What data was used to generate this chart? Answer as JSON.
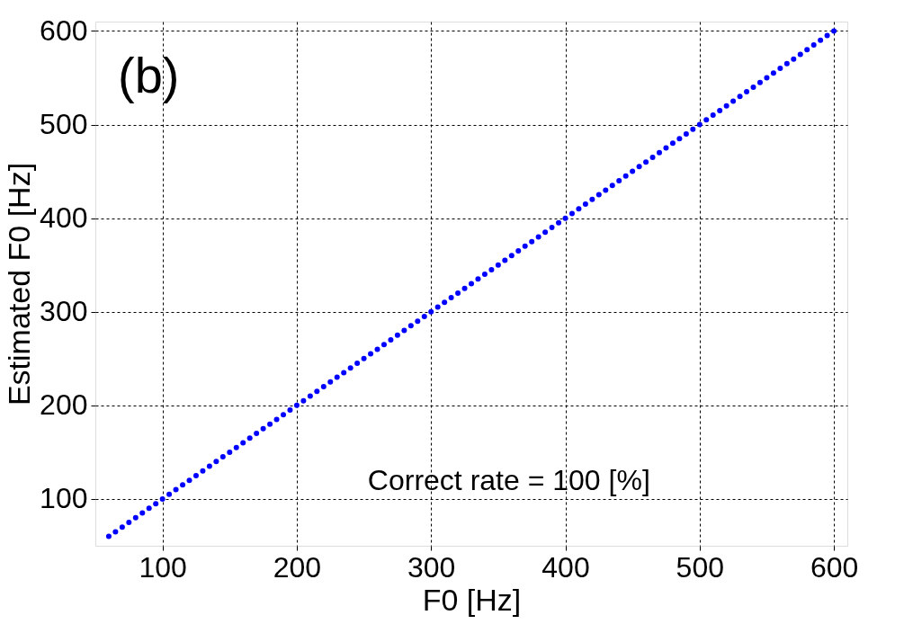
{
  "chart_data": {
    "type": "scatter",
    "xlabel": "F0 [Hz]",
    "ylabel": "Estimated F0 [Hz]",
    "annotations": [
      "(b)",
      "Correct rate = 100 [%]"
    ],
    "xlim": [
      50,
      610
    ],
    "ylim": [
      50,
      610
    ],
    "xticks": [
      100,
      200,
      300,
      400,
      500,
      600
    ],
    "yticks": [
      100,
      200,
      300,
      400,
      500,
      600
    ],
    "grid": true,
    "legend": false,
    "marker": "circle",
    "x": [
      60,
      65,
      70,
      75,
      80,
      85,
      90,
      95,
      100,
      105,
      110,
      115,
      120,
      125,
      130,
      135,
      140,
      145,
      150,
      155,
      160,
      165,
      170,
      175,
      180,
      185,
      190,
      195,
      200,
      205,
      210,
      215,
      220,
      225,
      230,
      235,
      240,
      245,
      250,
      255,
      260,
      265,
      270,
      275,
      280,
      285,
      290,
      295,
      300,
      305,
      310,
      315,
      320,
      325,
      330,
      335,
      340,
      345,
      350,
      355,
      360,
      365,
      370,
      375,
      380,
      385,
      390,
      395,
      400,
      405,
      410,
      415,
      420,
      425,
      430,
      435,
      440,
      445,
      450,
      455,
      460,
      465,
      470,
      475,
      480,
      485,
      490,
      495,
      500,
      505,
      510,
      515,
      520,
      525,
      530,
      535,
      540,
      545,
      550,
      555,
      560,
      565,
      570,
      575,
      580,
      585,
      590,
      595,
      600
    ],
    "series": [
      {
        "color": "#0000ff",
        "values": [
          60,
          65,
          70,
          75,
          80,
          85,
          90,
          95,
          100,
          105,
          110,
          115,
          120,
          125,
          130,
          135,
          140,
          145,
          150,
          155,
          160,
          165,
          170,
          175,
          180,
          185,
          190,
          195,
          200,
          205,
          210,
          215,
          220,
          225,
          230,
          235,
          240,
          245,
          250,
          255,
          260,
          265,
          270,
          275,
          280,
          285,
          290,
          295,
          300,
          305,
          310,
          315,
          320,
          325,
          330,
          335,
          340,
          345,
          350,
          355,
          360,
          365,
          370,
          375,
          380,
          385,
          390,
          395,
          400,
          405,
          410,
          415,
          420,
          425,
          430,
          435,
          440,
          445,
          450,
          455,
          460,
          465,
          470,
          475,
          480,
          485,
          490,
          495,
          500,
          505,
          510,
          515,
          520,
          525,
          530,
          535,
          540,
          545,
          550,
          555,
          560,
          565,
          570,
          575,
          580,
          585,
          590,
          595,
          600
        ]
      }
    ]
  }
}
